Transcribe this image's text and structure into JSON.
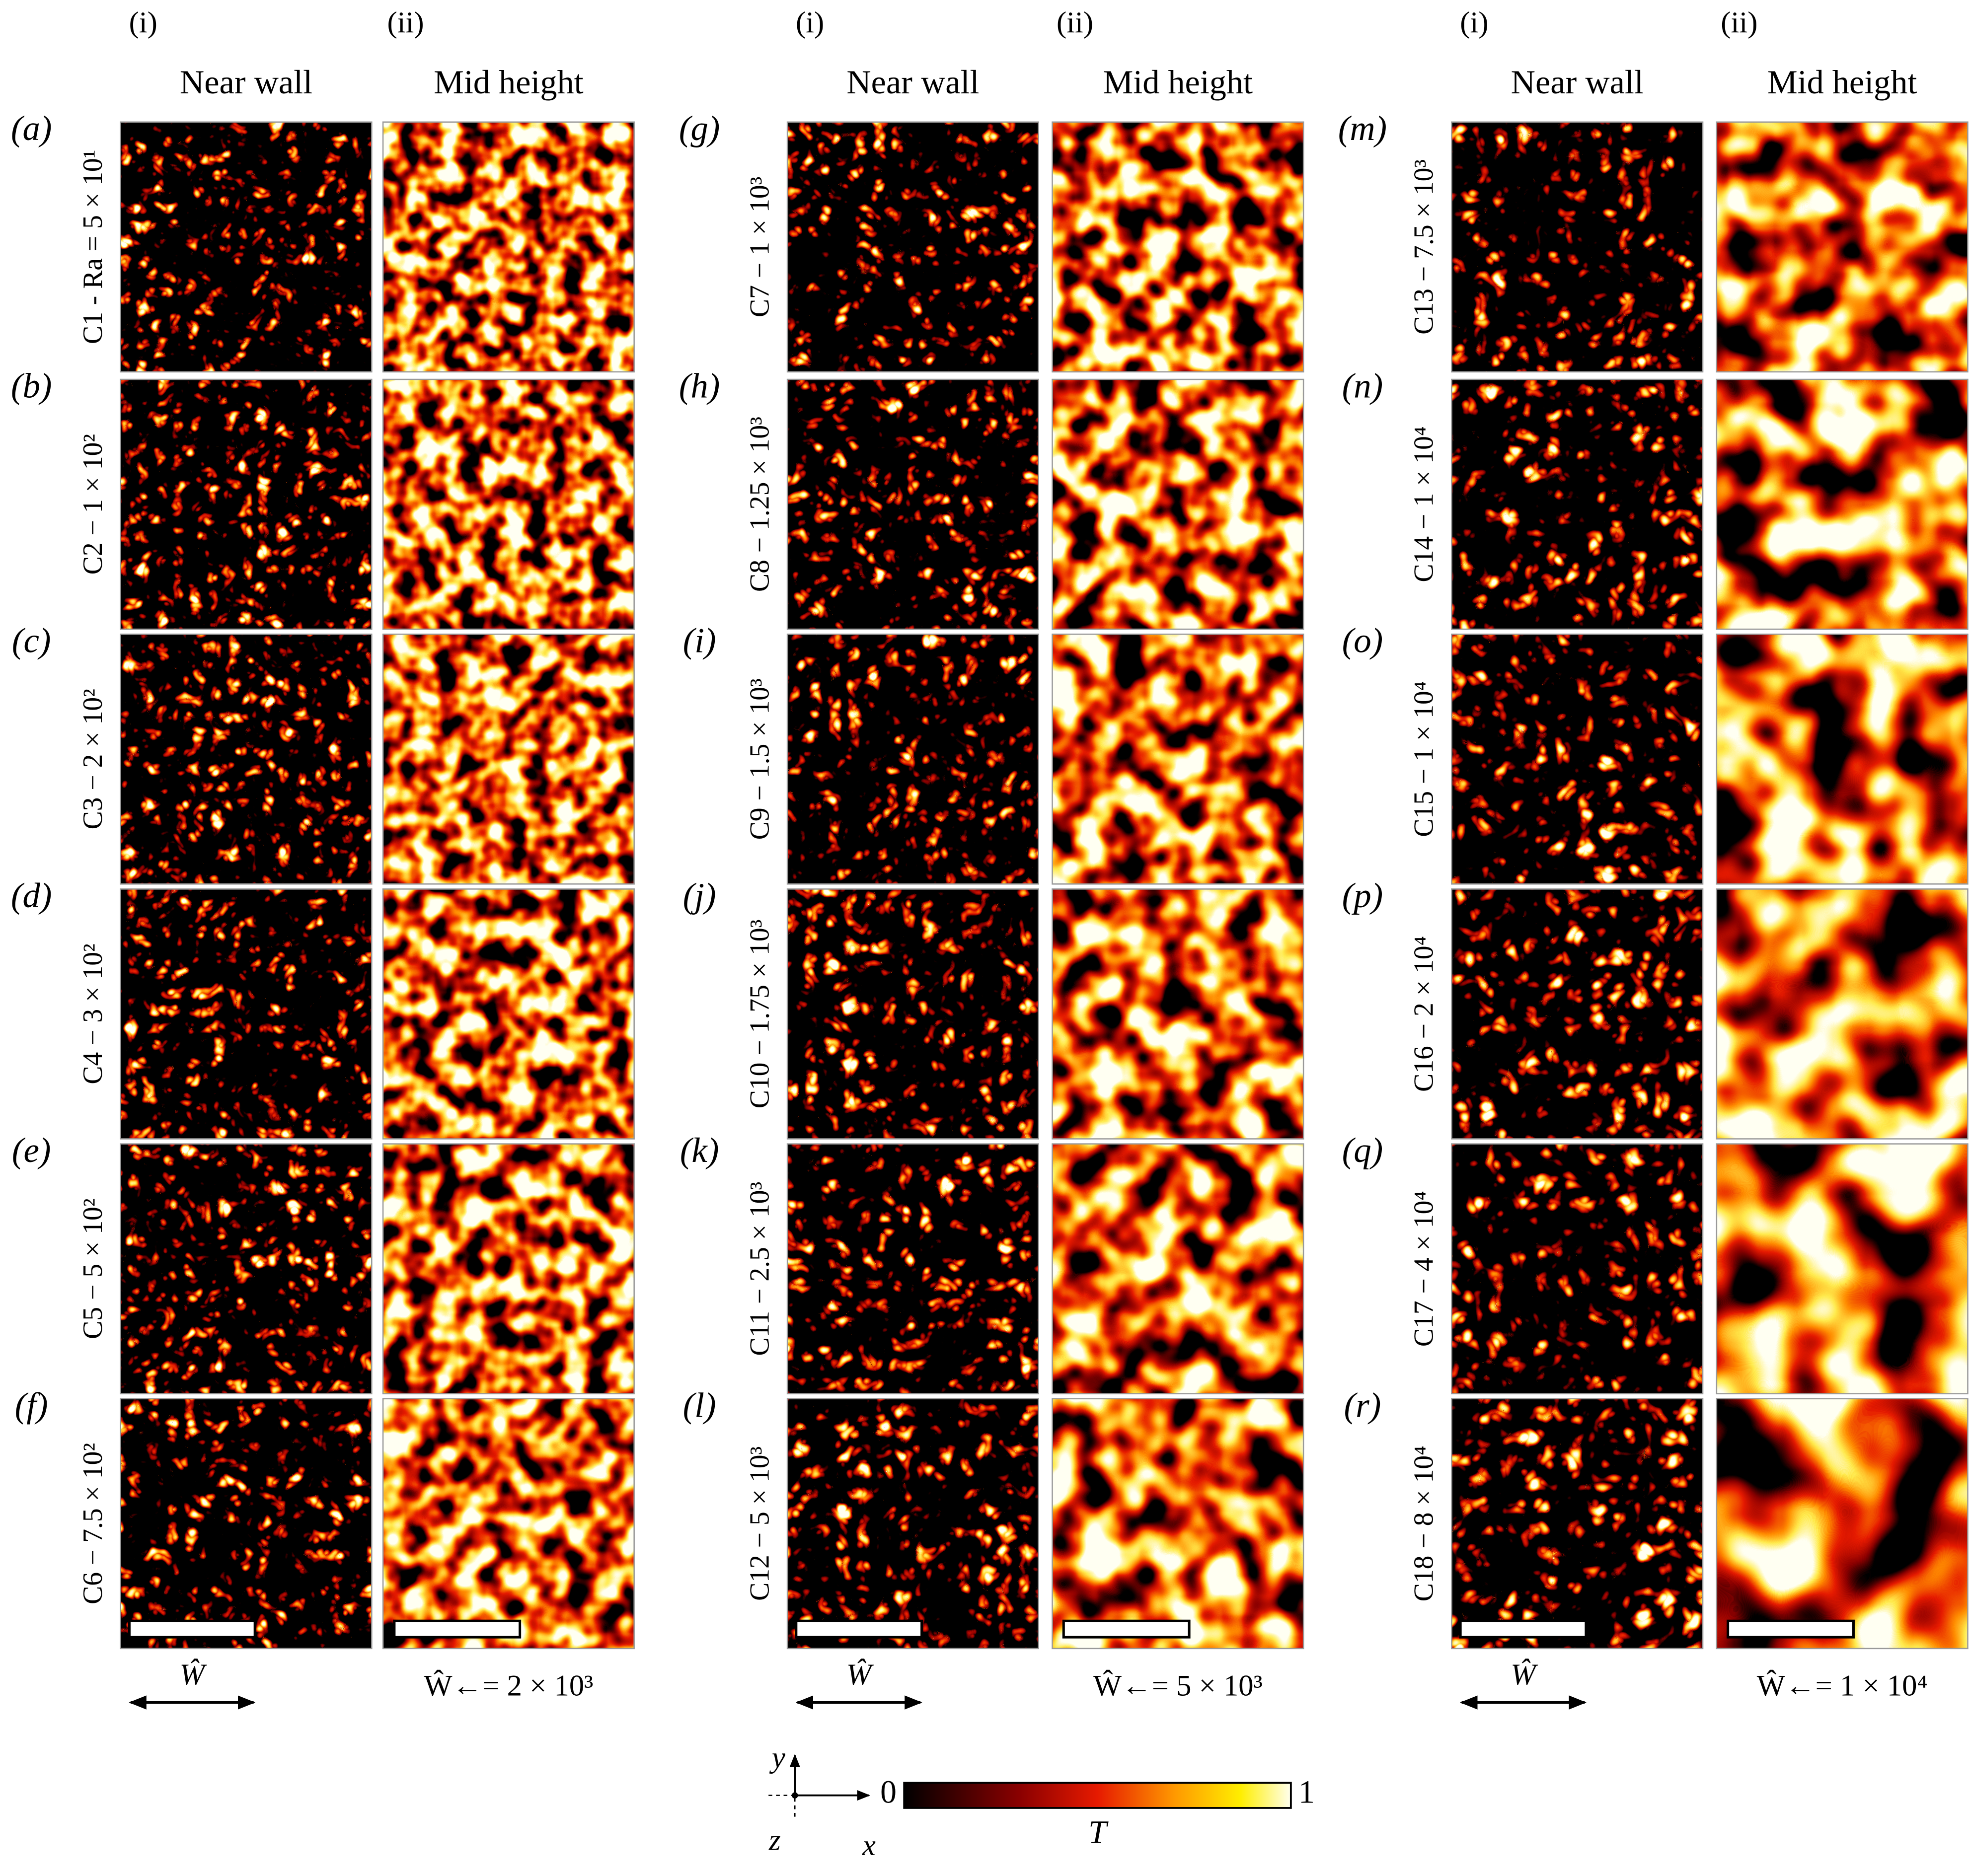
{
  "groups": [
    {
      "col_i": "(i)",
      "col_ii": "(ii)",
      "near": "Near wall",
      "mid": "Mid height",
      "scale_i": "Ŵ",
      "scale_ii": "Ŵ←= 2 × 10³",
      "panels": [
        {
          "label": "(a)",
          "case": "C1 - Ra = 5 × 10¹"
        },
        {
          "label": "(b)",
          "case": "C2 − 1 × 10²"
        },
        {
          "label": "(c)",
          "case": "C3 − 2 × 10²"
        },
        {
          "label": "(d)",
          "case": "C4 − 3 × 10²"
        },
        {
          "label": "(e)",
          "case": "C5 − 5 × 10²"
        },
        {
          "label": "(f)",
          "case": "C6 − 7.5 × 10²"
        }
      ]
    },
    {
      "col_i": "(i)",
      "col_ii": "(ii)",
      "near": "Near wall",
      "mid": "Mid height",
      "scale_i": "Ŵ",
      "scale_ii": "Ŵ←= 5 × 10³",
      "panels": [
        {
          "label": "(g)",
          "case": "C7 − 1 × 10³"
        },
        {
          "label": "(h)",
          "case": "C8 − 1.25 × 10³"
        },
        {
          "label": "(i)",
          "case": "C9 − 1.5 × 10³"
        },
        {
          "label": "(j)",
          "case": "C10 − 1.75 × 10³"
        },
        {
          "label": "(k)",
          "case": "C11 − 2.5 × 10³"
        },
        {
          "label": "(l)",
          "case": "C12 − 5 × 10³"
        }
      ]
    },
    {
      "col_i": "(i)",
      "col_ii": "(ii)",
      "near": "Near wall",
      "mid": "Mid height",
      "scale_i": "Ŵ",
      "scale_ii": "Ŵ←= 1 × 10⁴",
      "panels": [
        {
          "label": "(m)",
          "case": "C13 − 7.5 × 10³"
        },
        {
          "label": "(n)",
          "case": "C14 − 1 × 10⁴"
        },
        {
          "label": "(o)",
          "case": "C15 − 1 × 10⁴"
        },
        {
          "label": "(p)",
          "case": "C16 − 2 × 10⁴"
        },
        {
          "label": "(q)",
          "case": "C17 − 4 × 10⁴"
        },
        {
          "label": "(r)",
          "case": "C18 − 8 × 10⁴"
        }
      ]
    }
  ],
  "axes": {
    "y": "y",
    "x": "x",
    "z": "z"
  },
  "colorbar": {
    "label": "T",
    "lim": [
      0,
      1
    ],
    "ticks": [
      0,
      1
    ]
  }
}
